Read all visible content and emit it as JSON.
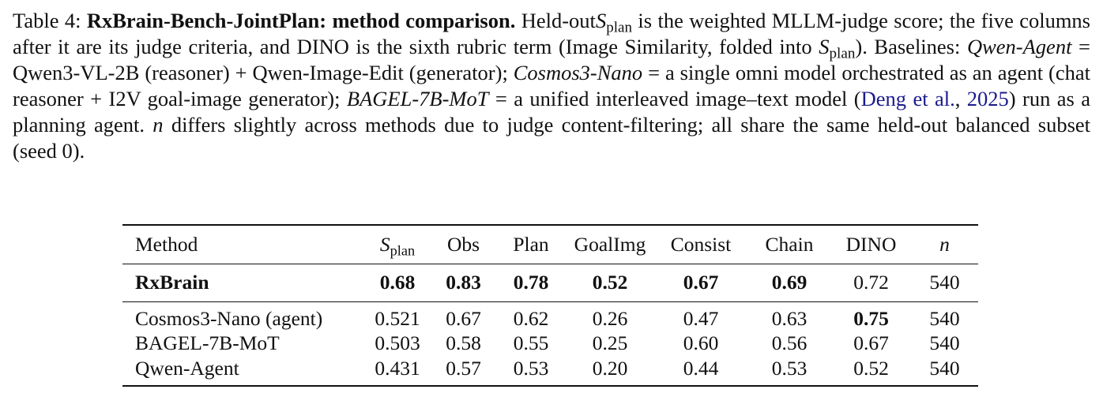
{
  "caption": {
    "segments": [
      "Table 4: ",
      "RxBrain-Bench-JointPlan: method comparison.",
      " Held-out",
      "S",
      "plan",
      " is the weighted MLLM-judge score; the five columns after it are its judge criteria, and DINO is the sixth rubric term (Image Similarity, folded into ",
      "S",
      "plan",
      "). Baselines: ",
      "Qwen-Agent",
      " = Qwen3-VL-2B (reasoner) + Qwen-Image-Edit (generator); ",
      "Cosmos3-Nano",
      " = a single omni model orchestrated as an agent (chat reasoner + I2V goal-image generator); ",
      "BAGEL-7B-MoT",
      " = a unified interleaved image–text model (",
      "Deng et al.",
      ", ",
      "2025",
      ") run as a planning agent. ",
      "n",
      " differs slightly across methods due to judge content-filtering; all share the same held-out balanced subset (seed 0)."
    ]
  },
  "table": {
    "columns": [
      "Method",
      {
        "symbol": "S",
        "subscript": "plan"
      },
      "Obs",
      "Plan",
      "GoalImg",
      "Consist",
      "Chain",
      "DINO",
      {
        "symbol": "n"
      }
    ],
    "rows": [
      {
        "cells": [
          "RxBrain",
          "0.68",
          "0.83",
          "0.78",
          "0.52",
          "0.67",
          "0.69",
          "0.72",
          "540"
        ],
        "bold": [
          0,
          1,
          2,
          3,
          4,
          5,
          6
        ]
      },
      {
        "cells": [
          "Cosmos3-Nano (agent)",
          "0.521",
          "0.67",
          "0.62",
          "0.26",
          "0.47",
          "0.63",
          "0.75",
          "540"
        ],
        "bold": [
          7
        ]
      },
      {
        "cells": [
          "BAGEL-7B-MoT",
          "0.503",
          "0.58",
          "0.55",
          "0.25",
          "0.60",
          "0.56",
          "0.67",
          "540"
        ]
      },
      {
        "cells": [
          "Qwen-Agent",
          "0.431",
          "0.57",
          "0.53",
          "0.20",
          "0.44",
          "0.53",
          "0.52",
          "540"
        ]
      }
    ]
  }
}
